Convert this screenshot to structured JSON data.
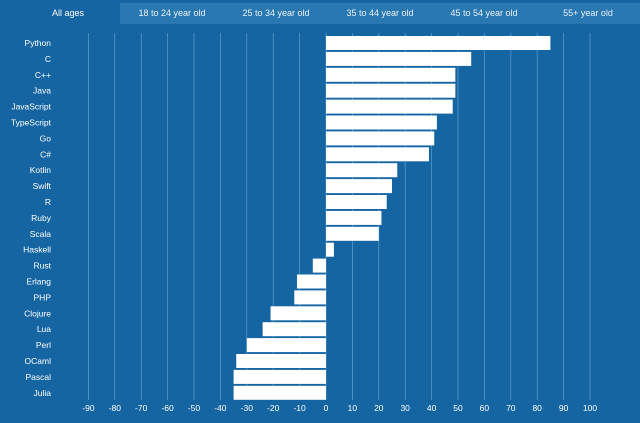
{
  "tabs": [
    {
      "label": "All ages",
      "active": true
    },
    {
      "label": "18 to 24 year old",
      "active": false
    },
    {
      "label": "25 to 34 year old",
      "active": false
    },
    {
      "label": "35 to 44 year old",
      "active": false
    },
    {
      "label": "45 to 54 year old",
      "active": false
    },
    {
      "label": "55+ year old",
      "active": false
    }
  ],
  "colors": {
    "background": "#1565a3",
    "bar": "#ffffff",
    "gridline": "#5f9fcd",
    "tab_bar": "#2a78b2"
  },
  "chart_data": {
    "type": "bar",
    "orientation": "horizontal",
    "title": "",
    "xlabel": "",
    "ylabel": "",
    "xlim": [
      -100,
      100
    ],
    "xticks": [
      -90,
      -80,
      -70,
      -60,
      -50,
      -40,
      -30,
      -20,
      -10,
      0,
      10,
      20,
      30,
      40,
      50,
      60,
      70,
      80,
      90,
      100
    ],
    "grid": true,
    "categories": [
      "Python",
      "C",
      "C++",
      "Java",
      "JavaScript",
      "TypeScript",
      "Go",
      "C#",
      "Kotlin",
      "Swift",
      "R",
      "Ruby",
      "Scala",
      "Haskell",
      "Rust",
      "Erlang",
      "PHP",
      "Clojure",
      "Lua",
      "Perl",
      "OCaml",
      "Pascal",
      "Julia"
    ],
    "values": [
      85,
      55,
      49,
      49,
      48,
      42,
      41,
      39,
      27,
      25,
      23,
      21,
      20,
      3,
      -5,
      -11,
      -12,
      -21,
      -24,
      -30,
      -34,
      -35,
      -35
    ]
  }
}
